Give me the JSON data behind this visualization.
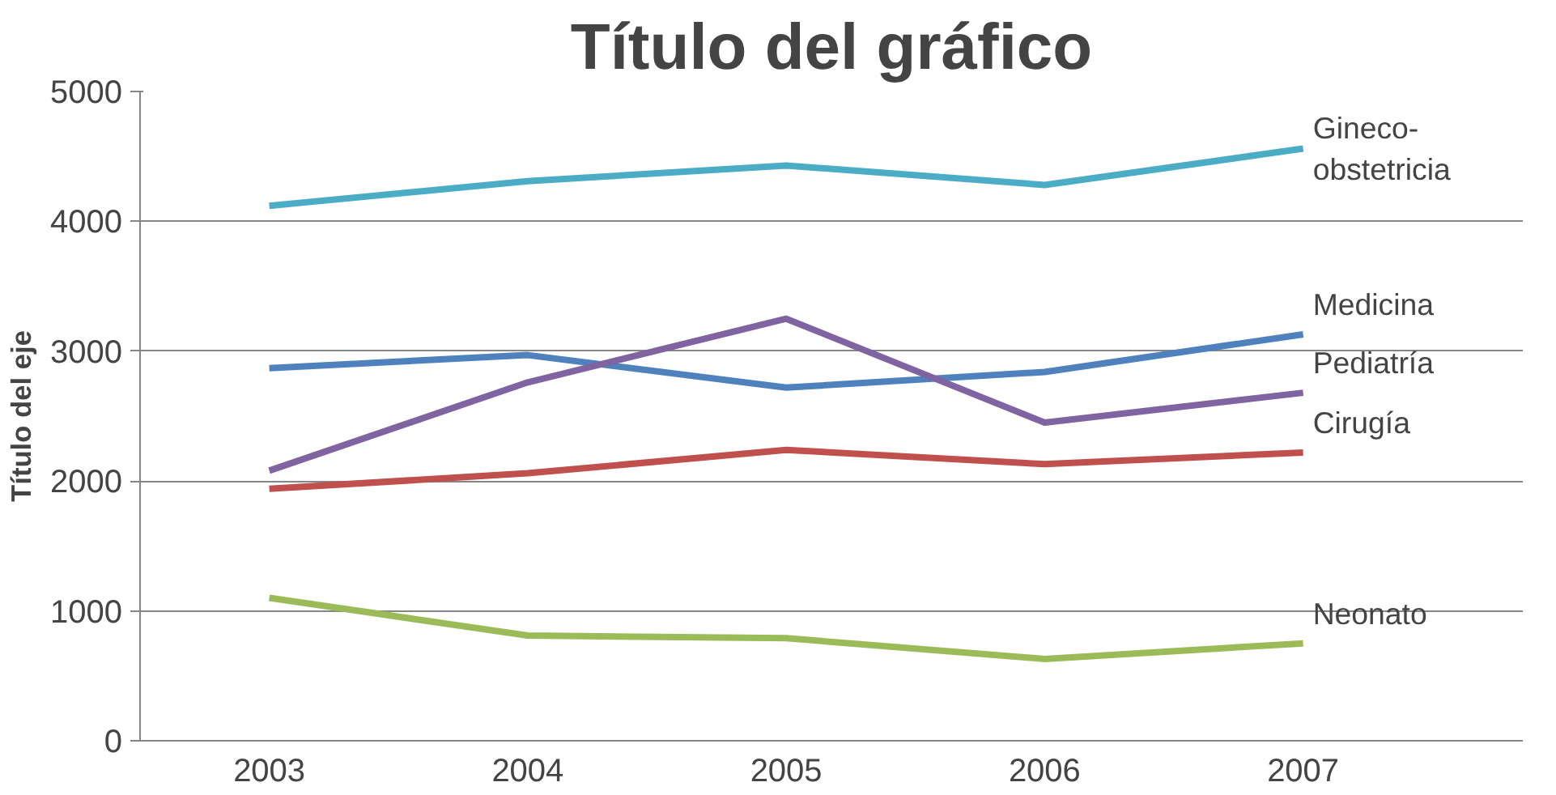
{
  "chart_data": {
    "type": "line",
    "title": "Título del gráfico",
    "ylabel": "Título del eje",
    "categories": [
      "2003",
      "2004",
      "2005",
      "2006",
      "2007"
    ],
    "series": [
      {
        "name": "Gineco-obstetricia",
        "color": "#4bacc6",
        "values": [
          4120,
          4310,
          4430,
          4280,
          4560
        ]
      },
      {
        "name": "Medicina",
        "color": "#4f81bd",
        "values": [
          2870,
          2970,
          2720,
          2840,
          3130
        ]
      },
      {
        "name": "Pediatría",
        "color": "#8064a2",
        "values": [
          2080,
          2760,
          3250,
          2450,
          2680
        ]
      },
      {
        "name": "Cirugía",
        "color": "#c0504d",
        "values": [
          1940,
          2060,
          2240,
          2130,
          2220
        ]
      },
      {
        "name": "Neonato",
        "color": "#9bbb59",
        "values": [
          1100,
          810,
          790,
          630,
          750
        ]
      }
    ],
    "ylim": [
      0,
      5000
    ],
    "yticks": [
      0,
      1000,
      2000,
      3000,
      4000,
      5000
    ],
    "grid": "y",
    "legend": false,
    "marker": "none",
    "line_style": "solid"
  }
}
